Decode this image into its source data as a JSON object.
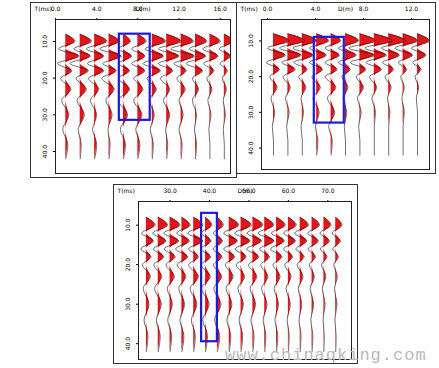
{
  "chart_data": [
    {
      "type": "wiggle",
      "color": "#e3151b",
      "xlabel": "D(m)",
      "ylabel": "T(ms)",
      "xlim": [
        0,
        17
      ],
      "xticks": [
        {
          "value": 0,
          "label": "0.0"
        },
        {
          "value": 4,
          "label": "4.0"
        },
        {
          "value": 8,
          "label": "8.0"
        },
        {
          "value": 12,
          "label": "12.0"
        },
        {
          "value": 16,
          "label": "16.0"
        }
      ],
      "ylim": [
        4,
        46
      ],
      "yticks": [
        {
          "value": 10,
          "label": "10.0"
        },
        {
          "value": 20,
          "label": "20.0"
        },
        {
          "value": 30,
          "label": "30.0"
        },
        {
          "value": 40,
          "label": "40.0"
        }
      ],
      "t": [
        8,
        10,
        12,
        14,
        16,
        18,
        20,
        23,
        26,
        30,
        34,
        38,
        42
      ],
      "offsets": [
        1.0,
        2.4,
        3.8,
        5.2,
        6.6,
        8.0,
        9.4,
        10.8,
        12.2,
        13.6,
        15.0,
        16.4
      ],
      "amplitudes": [
        [
          0,
          0.9,
          -0.7,
          1.3,
          -0.8,
          0.6,
          -0.5,
          0.5,
          -0.4,
          0.3,
          -0.3,
          0.2,
          0
        ],
        [
          0,
          1.1,
          -0.6,
          1.0,
          -1.0,
          0.8,
          -0.4,
          0.6,
          -0.3,
          0.4,
          -0.2,
          0.1,
          0
        ],
        [
          0,
          1.2,
          -0.8,
          0.9,
          -0.7,
          0.9,
          -0.6,
          0.4,
          -0.4,
          0.2,
          -0.2,
          0.2,
          0
        ],
        [
          0,
          1.0,
          -0.9,
          1.2,
          -0.6,
          0.7,
          -0.7,
          0.5,
          -0.3,
          0.3,
          -0.1,
          0.1,
          0
        ],
        [
          0,
          0.7,
          -0.5,
          0.8,
          -0.5,
          0.6,
          -0.5,
          0.6,
          -0.5,
          0.4,
          -0.3,
          0.2,
          0
        ],
        [
          0,
          0.8,
          -0.6,
          0.7,
          -0.6,
          0.7,
          -0.4,
          0.5,
          -0.4,
          0.4,
          -0.2,
          0.2,
          0
        ],
        [
          0,
          1.3,
          -0.7,
          1.1,
          -0.9,
          0.8,
          -0.5,
          0.4,
          -0.3,
          0.2,
          -0.2,
          0.1,
          0
        ],
        [
          0,
          1.4,
          -0.8,
          1.2,
          -0.8,
          0.6,
          -0.6,
          0.3,
          -0.3,
          0.3,
          -0.1,
          0.1,
          0
        ],
        [
          0,
          1.2,
          -1.0,
          1.3,
          -0.7,
          0.5,
          -0.4,
          0.4,
          -0.2,
          0.2,
          -0.2,
          0.1,
          0
        ],
        [
          0,
          1.1,
          -0.6,
          1.0,
          -0.9,
          0.7,
          -0.3,
          0.3,
          -0.3,
          0.1,
          -0.1,
          0.1,
          0
        ],
        [
          0,
          1.0,
          -0.7,
          0.8,
          -0.6,
          0.4,
          -0.3,
          0.2,
          -0.2,
          0.1,
          -0.1,
          0,
          0
        ],
        [
          0,
          0.9,
          -0.5,
          0.6,
          -0.4,
          0.3,
          -0.2,
          0.2,
          -0.1,
          0.1,
          -0.1,
          0,
          0
        ]
      ],
      "highlight": {
        "x": [
          6.2,
          9.2
        ],
        "y": [
          8,
          31.5
        ],
        "color": "#1c1cd6"
      }
    },
    {
      "type": "wiggle",
      "color": "#e3151b",
      "xlabel": "D(m)",
      "ylabel": "T(ms)",
      "xlim": [
        -0.5,
        13.5
      ],
      "xticks": [
        {
          "value": 0,
          "label": "0.0"
        },
        {
          "value": 4,
          "label": "4.0"
        },
        {
          "value": 8,
          "label": "8.0"
        },
        {
          "value": 12,
          "label": "12.0"
        }
      ],
      "ylim": [
        4,
        46
      ],
      "yticks": [
        {
          "value": 10,
          "label": "10.0"
        },
        {
          "value": 20,
          "label": "20.0"
        },
        {
          "value": 30,
          "label": "30.0"
        },
        {
          "value": 40,
          "label": "40.0"
        }
      ],
      "t": [
        8,
        10,
        12,
        14,
        16,
        18,
        20,
        23,
        26,
        30,
        34,
        38,
        42
      ],
      "offsets": [
        0.5,
        1.7,
        2.9,
        4.1,
        5.3,
        6.5,
        7.7,
        8.9,
        10.1,
        11.3,
        12.5
      ],
      "amplitudes": [
        [
          0,
          1.3,
          -0.5,
          1.0,
          -0.6,
          0.5,
          -0.3,
          0.3,
          -0.2,
          0.1,
          -0.1,
          0,
          0
        ],
        [
          0,
          1.4,
          -0.7,
          1.1,
          -0.5,
          0.6,
          -0.4,
          0.2,
          -0.2,
          0.1,
          -0.1,
          0,
          0
        ],
        [
          0,
          1.2,
          -0.8,
          0.9,
          -0.7,
          0.4,
          -0.3,
          0.3,
          -0.1,
          0.1,
          -0.1,
          0,
          0
        ],
        [
          0,
          1.0,
          -0.6,
          0.8,
          -0.6,
          0.5,
          -0.4,
          0.3,
          -0.3,
          0.2,
          -0.1,
          0.1,
          0
        ],
        [
          0,
          0.8,
          -0.5,
          0.7,
          -0.5,
          0.5,
          -0.5,
          0.4,
          -0.3,
          0.3,
          -0.2,
          0.1,
          0
        ],
        [
          0,
          1.1,
          -0.6,
          0.9,
          -0.6,
          0.4,
          -0.3,
          0.2,
          -0.2,
          0.1,
          -0.1,
          0,
          0
        ],
        [
          0,
          1.3,
          -0.9,
          1.2,
          -0.8,
          0.5,
          -0.3,
          0.3,
          -0.2,
          0.1,
          -0.1,
          0,
          0
        ],
        [
          0,
          1.5,
          -0.8,
          1.0,
          -0.7,
          0.6,
          -0.4,
          0.2,
          -0.2,
          0.1,
          0,
          0,
          0
        ],
        [
          0,
          1.4,
          -0.6,
          0.9,
          -0.5,
          0.4,
          -0.3,
          0.2,
          -0.1,
          0.1,
          0,
          0,
          0
        ],
        [
          0,
          1.2,
          -0.7,
          0.8,
          -0.4,
          0.3,
          -0.2,
          0.1,
          -0.1,
          0.1,
          0,
          0,
          0
        ],
        [
          0,
          1.0,
          -0.5,
          0.7,
          -0.4,
          0.3,
          -0.2,
          0.1,
          -0.1,
          0,
          0,
          0,
          0
        ]
      ],
      "highlight": {
        "x": [
          3.9,
          6.4
        ],
        "y": [
          9,
          33
        ],
        "color": "#1c1cd6"
      }
    },
    {
      "type": "wiggle",
      "color": "#e3151b",
      "xlabel": "D(m)",
      "ylabel": "T(ms)",
      "xlim": [
        22,
        76
      ],
      "xticks": [
        {
          "value": 30,
          "label": "30.0"
        },
        {
          "value": 40,
          "label": "40.0"
        },
        {
          "value": 50,
          "label": "50.0"
        },
        {
          "value": 60,
          "label": "60.0"
        },
        {
          "value": 70,
          "label": "70.0"
        }
      ],
      "ylim": [
        4,
        44
      ],
      "yticks": [
        {
          "value": 10,
          "label": "10.0"
        },
        {
          "value": 20,
          "label": "20.0"
        },
        {
          "value": 30,
          "label": "30.0"
        },
        {
          "value": 40,
          "label": "40.0"
        }
      ],
      "t": [
        8,
        10,
        12,
        14,
        16,
        18,
        20,
        23,
        26,
        30,
        34,
        38,
        42
      ],
      "offsets": [
        24,
        27,
        30,
        33,
        36,
        39,
        42,
        45,
        48,
        51,
        54,
        57,
        60,
        63,
        66,
        69,
        72
      ],
      "amplitudes": [
        [
          0,
          2.2,
          -1.2,
          1.8,
          -1.4,
          1.2,
          -1.0,
          1.0,
          -0.8,
          0.7,
          -0.6,
          0.4,
          0
        ],
        [
          0,
          2.4,
          -1.4,
          2.0,
          -1.2,
          1.4,
          -1.1,
          0.9,
          -0.9,
          0.8,
          -0.5,
          0.5,
          0
        ],
        [
          0,
          2.5,
          -1.6,
          2.2,
          -1.5,
          1.3,
          -1.0,
          1.1,
          -0.7,
          0.6,
          -0.6,
          0.4,
          0
        ],
        [
          0,
          2.1,
          -1.3,
          1.9,
          -1.6,
          1.5,
          -1.2,
          1.0,
          -0.8,
          0.7,
          -0.5,
          0.5,
          0
        ],
        [
          0,
          2.3,
          -1.5,
          2.3,
          -1.3,
          1.2,
          -1.3,
          1.2,
          -0.9,
          0.8,
          -0.6,
          0.4,
          0
        ],
        [
          0,
          1.6,
          -1.1,
          1.4,
          -1.2,
          1.3,
          -1.1,
          1.2,
          -1.0,
          0.9,
          -0.7,
          0.5,
          0
        ],
        [
          0,
          1.5,
          -1.0,
          1.3,
          -1.1,
          1.2,
          -1.0,
          1.1,
          -0.9,
          0.9,
          -0.7,
          0.6,
          0
        ],
        [
          0,
          2.4,
          -1.4,
          2.1,
          -1.4,
          1.4,
          -1.0,
          1.0,
          -0.8,
          0.7,
          -0.6,
          0.4,
          0
        ],
        [
          0,
          2.6,
          -1.6,
          2.3,
          -1.5,
          1.3,
          -1.2,
          0.9,
          -0.8,
          0.6,
          -0.5,
          0.4,
          0
        ],
        [
          0,
          2.5,
          -1.5,
          2.2,
          -1.6,
          1.5,
          -1.1,
          1.0,
          -0.7,
          0.7,
          -0.5,
          0.3,
          0
        ],
        [
          0,
          2.3,
          -1.7,
          2.4,
          -1.3,
          1.2,
          -1.0,
          0.8,
          -0.8,
          0.6,
          -0.4,
          0.3,
          0
        ],
        [
          0,
          2.2,
          -1.3,
          2.0,
          -1.5,
          1.4,
          -0.9,
          0.9,
          -0.6,
          0.5,
          -0.4,
          0.3,
          0
        ],
        [
          0,
          2.0,
          -1.2,
          1.8,
          -1.2,
          1.1,
          -0.9,
          0.7,
          -0.6,
          0.5,
          -0.3,
          0.2,
          0
        ],
        [
          0,
          2.1,
          -1.4,
          1.7,
          -1.1,
          1.0,
          -0.8,
          0.7,
          -0.5,
          0.4,
          -0.3,
          0.2,
          0
        ],
        [
          0,
          1.9,
          -1.1,
          1.6,
          -1.0,
          0.9,
          -0.7,
          0.6,
          -0.5,
          0.4,
          -0.3,
          0.2,
          0
        ],
        [
          0,
          1.8,
          -1.0,
          1.4,
          -0.9,
          0.8,
          -0.6,
          0.5,
          -0.4,
          0.3,
          -0.2,
          0.1,
          0
        ],
        [
          0,
          1.6,
          -0.9,
          1.2,
          -0.8,
          0.7,
          -0.5,
          0.4,
          -0.3,
          0.3,
          -0.2,
          0.1,
          0
        ]
      ],
      "highlight": {
        "x": [
          38,
          42
        ],
        "y": [
          7,
          39.5
        ],
        "color": "#1c1cd6"
      },
      "watermark": "www.chinaqking.com"
    }
  ]
}
